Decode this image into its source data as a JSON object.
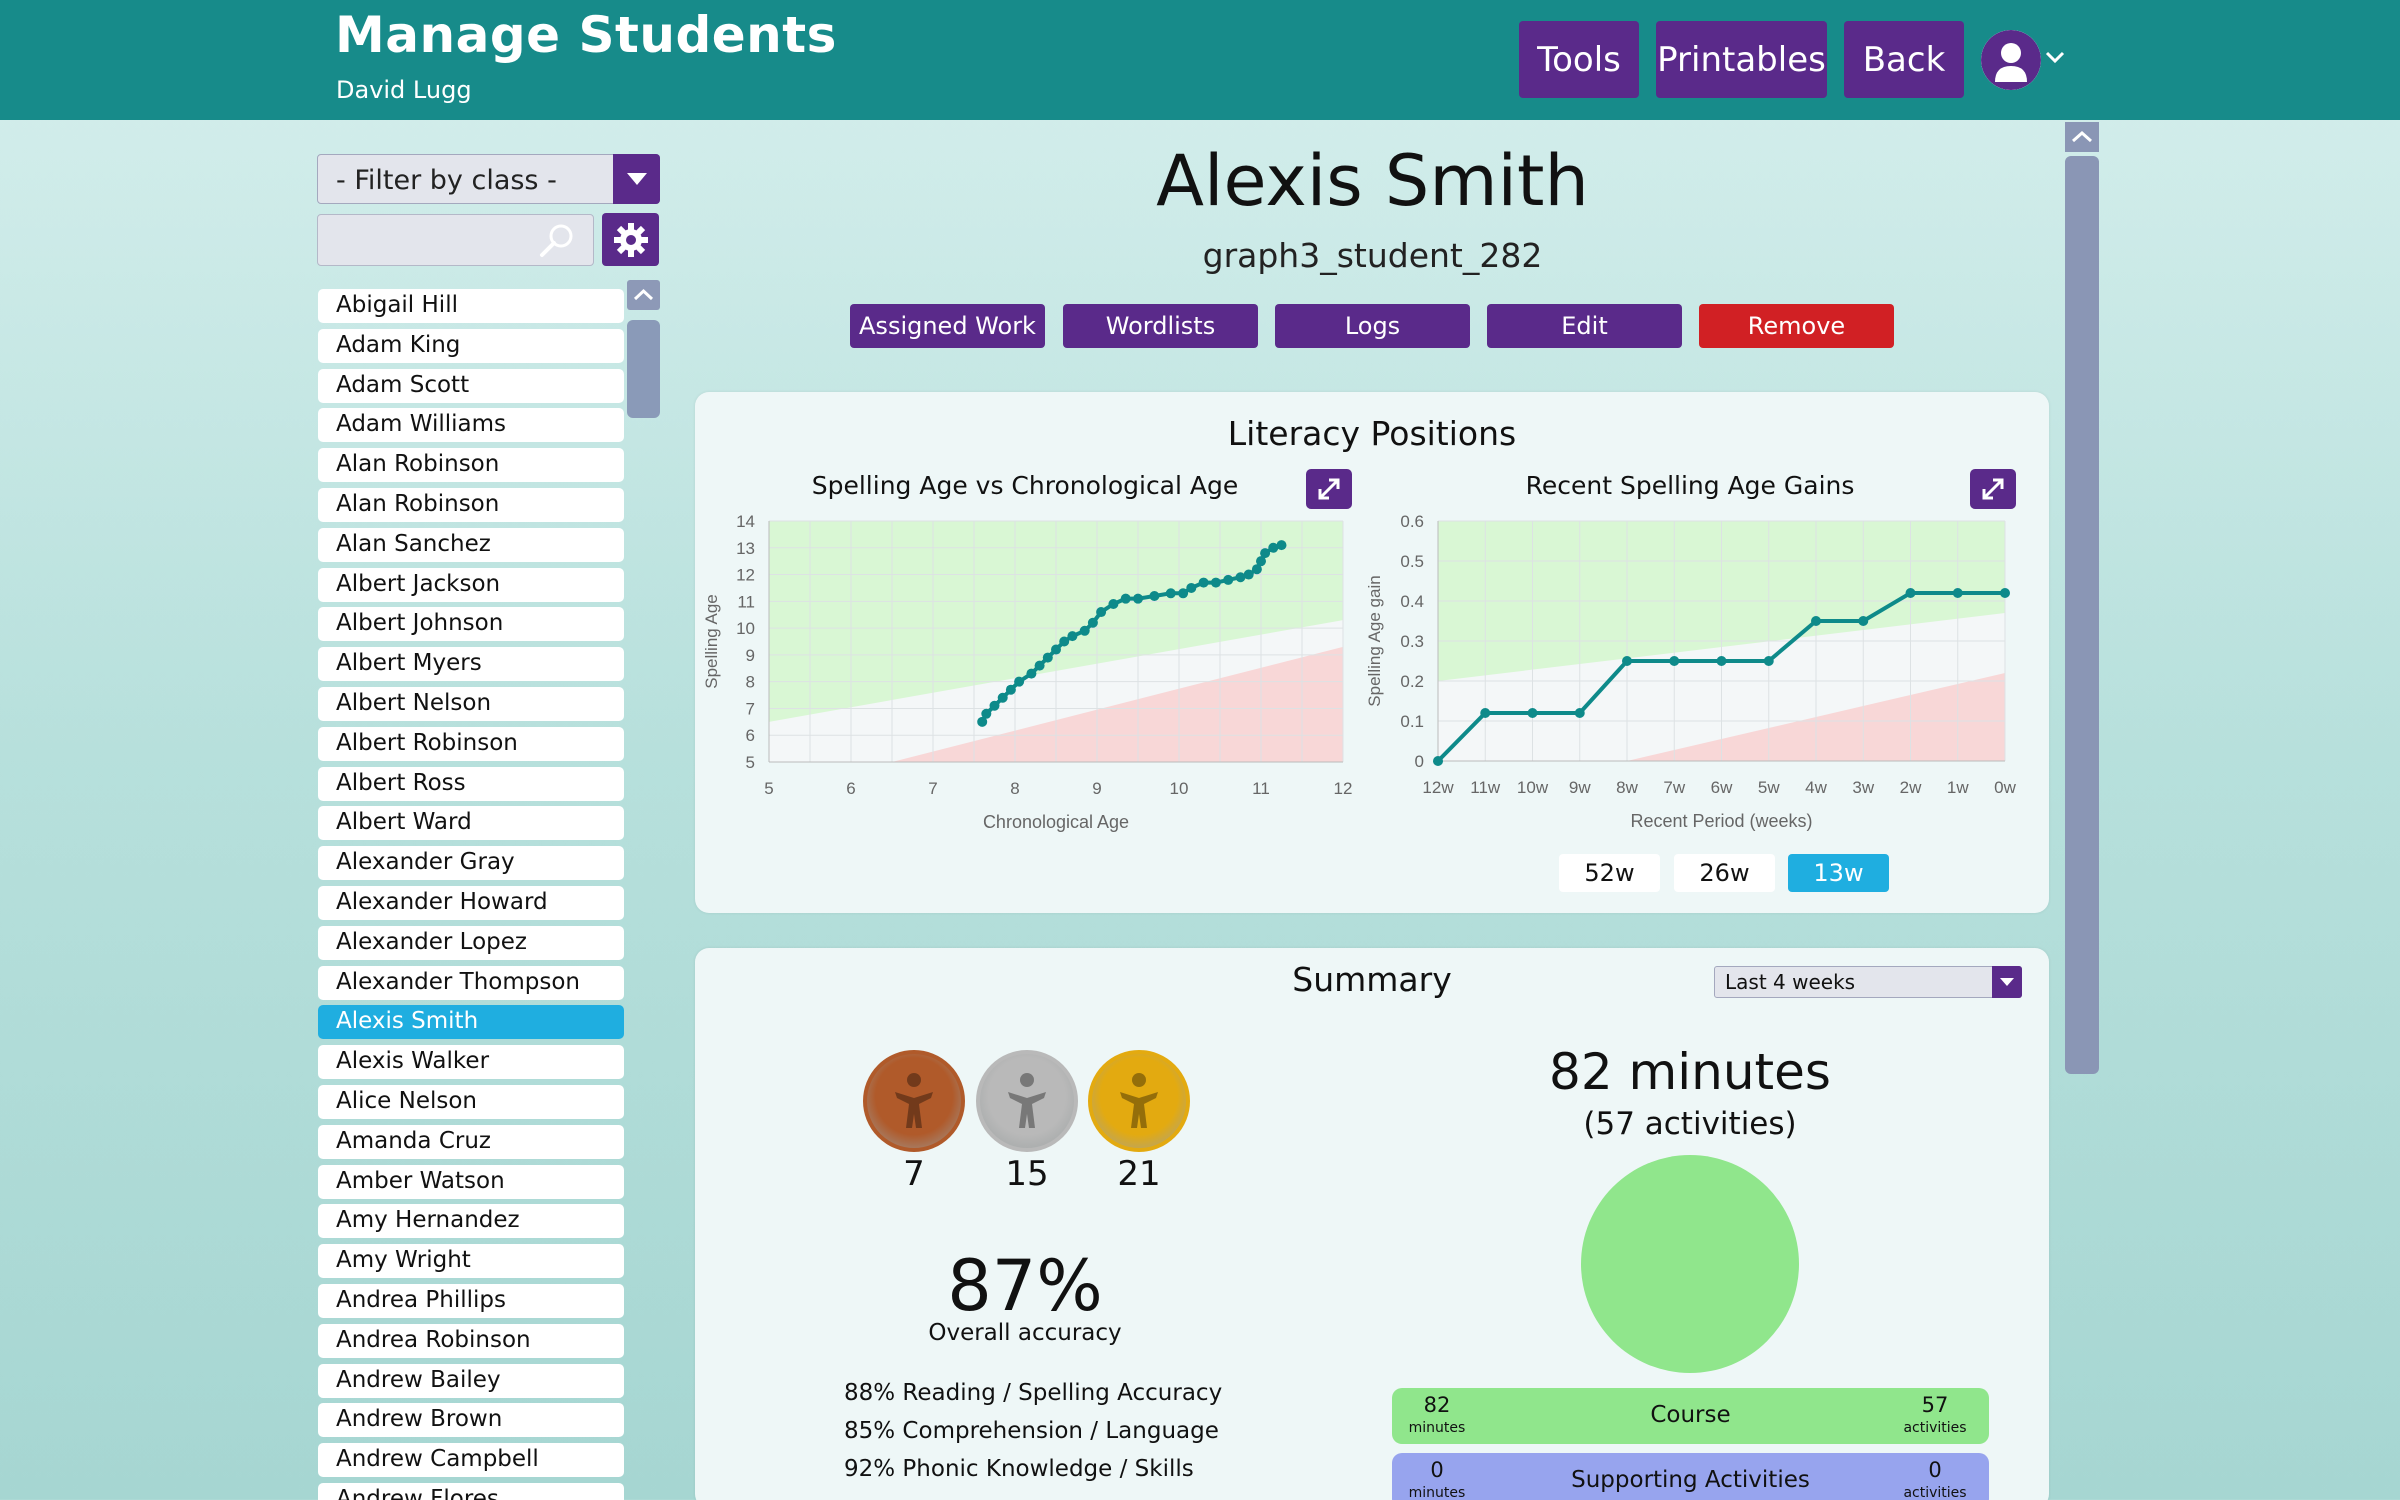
{
  "header": {
    "title": "Manage Students",
    "user": "David Lugg",
    "buttons": {
      "tools": "Tools",
      "printables": "Printables",
      "back": "Back"
    }
  },
  "sidebar": {
    "filter_label": "- Filter by class -",
    "search_placeholder": "",
    "students": [
      "Abigail Hill",
      "Adam King",
      "Adam Scott",
      "Adam Williams",
      "Alan Robinson",
      "Alan Robinson",
      "Alan Sanchez",
      "Albert Jackson",
      "Albert Johnson",
      "Albert Myers",
      "Albert Nelson",
      "Albert Robinson",
      "Albert Ross",
      "Albert Ward",
      "Alexander Gray",
      "Alexander Howard",
      "Alexander Lopez",
      "Alexander Thompson",
      "Alexis Smith",
      "Alexis Walker",
      "Alice Nelson",
      "Amanda Cruz",
      "Amber Watson",
      "Amy Hernandez",
      "Amy Wright",
      "Andrea Phillips",
      "Andrea Robinson",
      "Andrew Bailey",
      "Andrew Brown",
      "Andrew Campbell",
      "Andrew Flores"
    ],
    "selected_index": 18
  },
  "student": {
    "name": "Alexis Smith",
    "id": "graph3_student_282",
    "actions": {
      "assigned_work": "Assigned Work",
      "wordlists": "Wordlists",
      "logs": "Logs",
      "edit": "Edit",
      "remove": "Remove"
    }
  },
  "literacy": {
    "title": "Literacy Positions",
    "periods": [
      "52w",
      "26w",
      "13w"
    ],
    "active_period": "13w"
  },
  "chart_data": [
    {
      "type": "scatter",
      "title": "Spelling Age vs Chronological Age",
      "xlabel": "Chronological Age",
      "ylabel": "Spelling Age",
      "xlim": [
        5,
        12
      ],
      "ylim": [
        5,
        14
      ],
      "xticks": [
        "5",
        "6",
        "7",
        "8",
        "9",
        "10",
        "11",
        "12"
      ],
      "yticks": [
        "5",
        "6",
        "7",
        "8",
        "9",
        "10",
        "11",
        "12",
        "13",
        "14"
      ],
      "grid": true,
      "points": [
        [
          7.6,
          6.5
        ],
        [
          7.65,
          6.8
        ],
        [
          7.75,
          7.1
        ],
        [
          7.85,
          7.4
        ],
        [
          7.95,
          7.7
        ],
        [
          8.05,
          8.0
        ],
        [
          8.2,
          8.3
        ],
        [
          8.3,
          8.6
        ],
        [
          8.4,
          8.9
        ],
        [
          8.5,
          9.2
        ],
        [
          8.6,
          9.5
        ],
        [
          8.7,
          9.7
        ],
        [
          8.85,
          9.9
        ],
        [
          8.95,
          10.2
        ],
        [
          9.05,
          10.6
        ],
        [
          9.2,
          10.9
        ],
        [
          9.35,
          11.1
        ],
        [
          9.5,
          11.1
        ],
        [
          9.7,
          11.2
        ],
        [
          9.9,
          11.3
        ],
        [
          10.05,
          11.3
        ],
        [
          10.15,
          11.5
        ],
        [
          10.3,
          11.7
        ],
        [
          10.45,
          11.7
        ],
        [
          10.6,
          11.8
        ],
        [
          10.75,
          11.9
        ],
        [
          10.85,
          12.0
        ],
        [
          10.95,
          12.2
        ],
        [
          11.0,
          12.5
        ],
        [
          11.05,
          12.8
        ],
        [
          11.15,
          13.0
        ],
        [
          11.25,
          13.1
        ]
      ]
    },
    {
      "type": "line",
      "title": "Recent Spelling Age Gains",
      "xlabel": "Recent Period (weeks)",
      "ylabel": "Spelling Age gain",
      "categories": [
        "12w",
        "11w",
        "10w",
        "9w",
        "8w",
        "7w",
        "6w",
        "5w",
        "4w",
        "3w",
        "2w",
        "1w",
        "0w"
      ],
      "values": [
        0,
        0.12,
        0.12,
        0.12,
        0.25,
        0.25,
        0.25,
        0.25,
        0.35,
        0.35,
        0.42,
        0.42,
        0.42
      ],
      "ylim": [
        0,
        0.6
      ],
      "yticks": [
        "0",
        "0.1",
        "0.2",
        "0.3",
        "0.4",
        "0.5",
        "0.6"
      ],
      "grid": true
    }
  ],
  "summary": {
    "title": "Summary",
    "range": "Last 4 weeks",
    "medals": [
      {
        "color": "#b05a2a",
        "count": "7"
      },
      {
        "color": "#b9b9b9",
        "count": "15"
      },
      {
        "color": "#e3aa10",
        "count": "21"
      }
    ],
    "total_minutes": "82 minutes",
    "total_activities": "(57 activities)",
    "accuracy": "87%",
    "accuracy_label": "Overall accuracy",
    "skills": [
      "88% Reading / Spelling Accuracy",
      "85% Comprehension / Language",
      "92% Phonic Knowledge / Skills"
    ],
    "course": {
      "label": "Course",
      "minutes": "82",
      "minutes_unit": "minutes",
      "activities": "57",
      "activities_unit": "activities"
    },
    "supporting": {
      "label": "Supporting Activities",
      "minutes": "0",
      "minutes_unit": "minutes",
      "activities": "0",
      "activities_unit": "activities"
    }
  }
}
